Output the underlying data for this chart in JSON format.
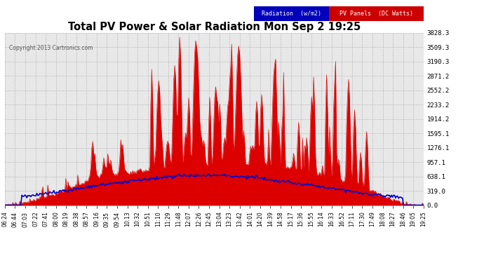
{
  "title": "Total PV Power & Solar Radiation Mon Sep 2 19:25",
  "copyright": "Copyright 2013 Cartronics.com",
  "legend_radiation": "Radiation  (w/m2)",
  "legend_pv": "PV Panels  (DC Watts)",
  "legend_radiation_bg": "#0000bb",
  "legend_pv_bg": "#cc0000",
  "background_color": "#ffffff",
  "plot_bg_color": "#e8e8e8",
  "grid_color": "#aaaaaa",
  "pv_color": "#dd0000",
  "radiation_color": "#0000cc",
  "ylim": [
    0,
    3828.3
  ],
  "yticks": [
    0.0,
    319.0,
    638.1,
    957.1,
    1276.1,
    1595.1,
    1914.2,
    2233.2,
    2552.2,
    2871.2,
    3190.3,
    3509.3,
    3828.3
  ],
  "x_labels": [
    "06:24",
    "06:44",
    "07:03",
    "07:22",
    "07:41",
    "08:00",
    "08:19",
    "08:38",
    "08:57",
    "09:16",
    "09:35",
    "09:54",
    "10:13",
    "10:32",
    "10:51",
    "11:10",
    "11:29",
    "11:48",
    "12:07",
    "12:26",
    "12:45",
    "13:04",
    "13:23",
    "13:42",
    "14:01",
    "14:20",
    "14:39",
    "14:58",
    "15:17",
    "15:36",
    "15:55",
    "16:14",
    "16:33",
    "16:52",
    "17:11",
    "17:30",
    "17:49",
    "18:08",
    "18:27",
    "18:46",
    "19:05",
    "19:25"
  ]
}
